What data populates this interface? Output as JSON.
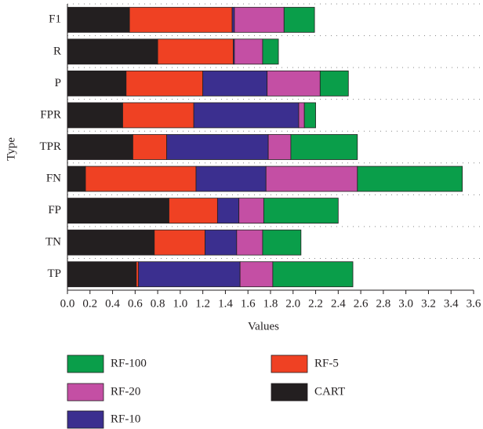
{
  "chart_data": {
    "type": "stacked-barh",
    "x_label": "Values",
    "y_label": "Type",
    "categories": [
      "F1",
      "R",
      "P",
      "FPR",
      "TPR",
      "FN",
      "FP",
      "TN",
      "TP"
    ],
    "series": [
      {
        "name": "CART",
        "color": "#231f20",
        "values": [
          0.55,
          0.8,
          0.52,
          0.49,
          0.58,
          0.16,
          0.9,
          0.77,
          0.61
        ]
      },
      {
        "name": "RF-5",
        "color": "#ef4123",
        "values": [
          0.91,
          0.67,
          0.68,
          0.63,
          0.3,
          0.98,
          0.43,
          0.45,
          0.02
        ]
      },
      {
        "name": "RF-10",
        "color": "#3b2f8f",
        "values": [
          0.02,
          0.01,
          0.57,
          0.93,
          0.9,
          0.62,
          0.19,
          0.28,
          0.9
        ]
      },
      {
        "name": "RF-20",
        "color": "#c44fa4",
        "values": [
          0.44,
          0.25,
          0.47,
          0.05,
          0.2,
          0.81,
          0.22,
          0.23,
          0.29
        ]
      },
      {
        "name": "RF-100",
        "color": "#0a9e4a",
        "values": [
          0.27,
          0.14,
          0.25,
          0.1,
          0.59,
          0.93,
          0.66,
          0.34,
          0.71
        ]
      }
    ],
    "legend_order": [
      "RF-100",
      "RF-5",
      "RF-20",
      "CART",
      "RF-10"
    ],
    "xlim": [
      0,
      3.6
    ],
    "xticks": [
      {
        "value": 0,
        "label": "0.0"
      },
      0.2,
      0.4,
      0.6,
      0.8,
      {
        "value": 1,
        "label": "1.0"
      },
      1.2,
      1.4,
      1.6,
      1.8,
      {
        "value": 2,
        "label": "2.0"
      },
      2.2,
      2.4,
      2.6,
      2.8,
      {
        "value": 3,
        "label": "3.0"
      },
      3.2,
      3.4,
      3.6
    ],
    "grid": true
  }
}
